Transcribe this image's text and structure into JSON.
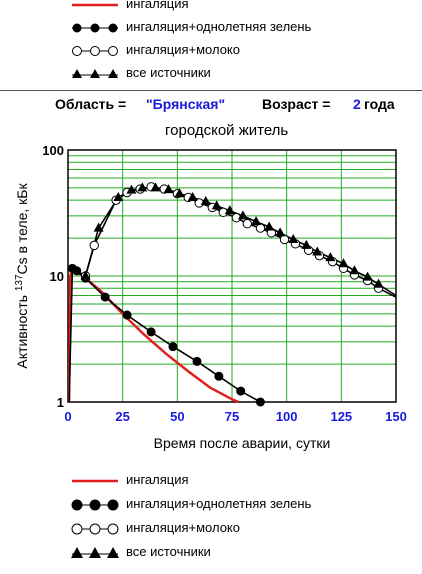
{
  "legend": [
    {
      "label": "ингаляция",
      "kind": "line",
      "color": "#e21f1f"
    },
    {
      "label": "ингаляция+однолетняя зелень",
      "kind": "filled-circle",
      "color": "#000000"
    },
    {
      "label": "ингаляция+молоко",
      "kind": "open-circle",
      "color": "#000000"
    },
    {
      "label": "все источники",
      "kind": "filled-triangle",
      "color": "#000000"
    }
  ],
  "header": {
    "region_label": "Область =",
    "region_value": "\"Брянская\"",
    "age_label": "Возраст =",
    "age_value": "2",
    "age_unit": "года"
  },
  "subtitle": "городской житель",
  "chart_data": {
    "type": "line",
    "xlabel": "Время после аварии, сутки",
    "ylabel": "Активность 137Cs в теле, кБк",
    "ylabel_prefix": "Активность ",
    "ylabel_sup": "137",
    "ylabel_suffix": "Cs в теле, кБк",
    "xlim": [
      0,
      150
    ],
    "ylim": [
      1,
      100
    ],
    "yscale": "log",
    "x_ticks": [
      0,
      25,
      50,
      75,
      100,
      125,
      150
    ],
    "y_ticks": [
      1,
      10,
      100
    ],
    "grid": true,
    "grid_color": "#22aa22",
    "series": [
      {
        "name": "ингаляция",
        "color": "#e21f1f",
        "marker": "none",
        "x": [
          0.5,
          1,
          2,
          3,
          5,
          8,
          15,
          25,
          35,
          45,
          55,
          65,
          75,
          78
        ],
        "y": [
          1,
          10,
          11.5,
          11.2,
          10.5,
          9.6,
          7.6,
          5.0,
          3.4,
          2.4,
          1.75,
          1.3,
          1.05,
          1.0
        ]
      },
      {
        "name": "ингаляция+однолетняя зелень",
        "color": "#000000",
        "marker": "filled-circle",
        "x": [
          2,
          4,
          8,
          17,
          27,
          38,
          48,
          59,
          69,
          79,
          88
        ],
        "y": [
          11.5,
          11,
          9.6,
          6.8,
          4.9,
          3.6,
          2.75,
          2.1,
          1.6,
          1.22,
          1.0
        ]
      },
      {
        "name": "ингаляция+молоко",
        "color": "#000000",
        "marker": "open-circle",
        "x": [
          0.5,
          2,
          8,
          12,
          22,
          27,
          33,
          38,
          44,
          50,
          55,
          60,
          66,
          71,
          77,
          82,
          88,
          93,
          99,
          104,
          110,
          115,
          121,
          126,
          131,
          137,
          142,
          150
        ],
        "y": [
          1,
          11.5,
          10,
          17.5,
          40,
          46,
          49,
          51,
          49,
          45,
          42,
          38,
          35,
          32,
          29,
          26,
          24,
          22,
          19.5,
          18,
          16,
          14.5,
          13,
          11.5,
          10.2,
          9.2,
          8.0,
          6.8
        ]
      },
      {
        "name": "все источники",
        "color": "#000000",
        "marker": "filled-triangle",
        "x": [
          8,
          14,
          23,
          29,
          34,
          40,
          46,
          51,
          57,
          63,
          68,
          74,
          80,
          86,
          92,
          97,
          103,
          109,
          114,
          120,
          126,
          131,
          137,
          142,
          150
        ],
        "y": [
          10,
          24,
          42,
          48,
          50,
          50,
          48.5,
          45,
          42,
          39,
          36,
          33,
          30,
          27,
          24.5,
          22,
          19.5,
          17.5,
          15.5,
          14,
          12.5,
          11,
          9.8,
          8.6,
          7.0
        ]
      }
    ]
  }
}
